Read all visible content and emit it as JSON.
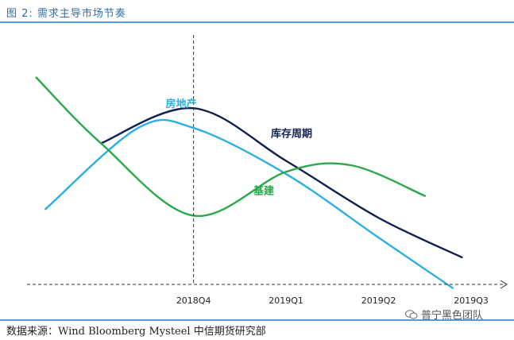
{
  "header": {
    "title": "图 2:   需求主导市场节奏"
  },
  "footer": {
    "source": "数据来源：Wind Bloomberg Mysteel 中信期货研究部"
  },
  "watermark": {
    "text": "普宁黑色团队",
    "icon": "wechat-icon"
  },
  "colors": {
    "inventory": "#0f1f4f",
    "property": "#2ab0e0",
    "infrastructure": "#2aa84a",
    "axis": "#333333",
    "rule": "#5b9bd5"
  },
  "chart_data": {
    "type": "line",
    "title": "",
    "xlabel": "",
    "ylabel": "",
    "x_ticks": [
      "2018Q4",
      "2019Q1",
      "2019Q2",
      "2019Q3"
    ],
    "marker_line": "2018Q4",
    "x_range": [
      -1.8,
      3.3
    ],
    "y_range": [
      0,
      10
    ],
    "grid": false,
    "legend": "inline labels",
    "series": [
      {
        "name": "库存周期",
        "color": "#0f1f4f",
        "points": [
          [
            -1.0,
            6.0
          ],
          [
            0.0,
            7.6
          ],
          [
            1.0,
            5.2
          ],
          [
            2.0,
            2.6
          ],
          [
            2.9,
            0.8
          ]
        ]
      },
      {
        "name": "房地产",
        "color": "#2ab0e0",
        "points": [
          [
            -1.6,
            3.0
          ],
          [
            -0.6,
            6.7
          ],
          [
            0.0,
            6.7
          ],
          [
            1.0,
            4.6
          ],
          [
            2.0,
            1.7
          ],
          [
            2.8,
            -0.6
          ]
        ]
      },
      {
        "name": "基建",
        "color": "#2aa84a",
        "points": [
          [
            -1.7,
            9.0
          ],
          [
            -1.0,
            6.0
          ],
          [
            0.0,
            2.7
          ],
          [
            1.0,
            4.7
          ],
          [
            1.7,
            5.0
          ],
          [
            2.5,
            3.6
          ]
        ]
      }
    ]
  }
}
